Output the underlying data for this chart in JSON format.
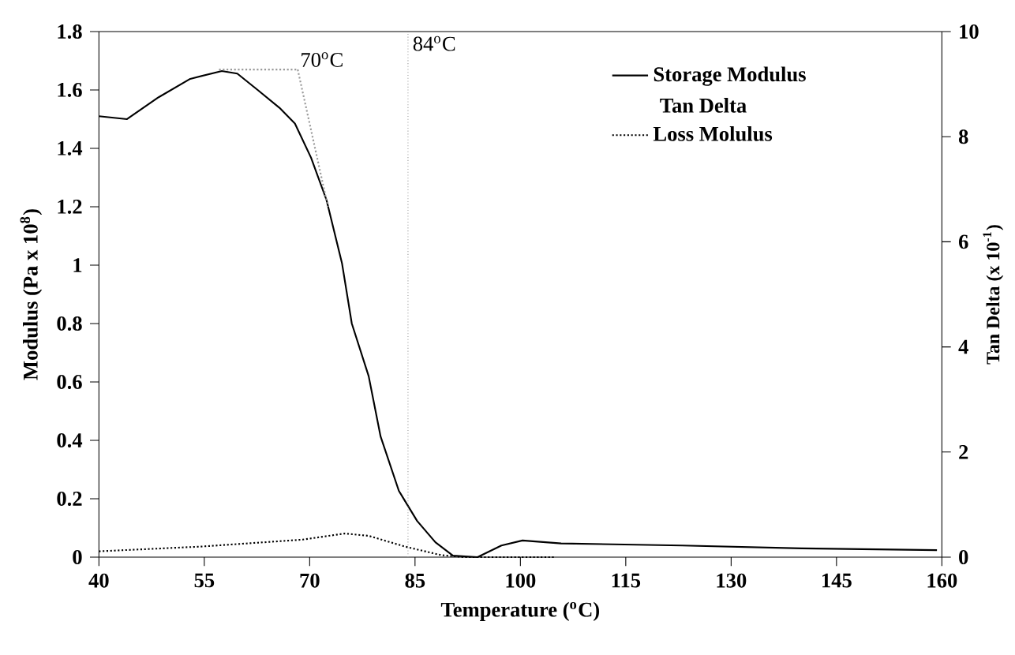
{
  "chart_data": {
    "type": "line",
    "xlabel": "Temperature ($^{o}$C)",
    "ylabel": "Modulus (Pa x 10$^{8}$)",
    "y2label": "Tan Delta (x 10$^{-1}$)",
    "xlim": [
      40,
      160
    ],
    "xticks": [
      40,
      55,
      70,
      85,
      100,
      115,
      130,
      145,
      160
    ],
    "ylim": [
      0,
      1.8
    ],
    "yticks": [
      0,
      0.2,
      0.4,
      0.6,
      0.8,
      1,
      1.2,
      1.4,
      1.6,
      1.8
    ],
    "y2lim": [
      0,
      10
    ],
    "y2ticks": [
      0,
      2,
      4,
      6,
      8,
      10
    ],
    "legend": "top right",
    "grid": false,
    "marker": "none",
    "series": [
      {
        "name": "Storage Modulus",
        "color": "#000000",
        "line_style": "solid",
        "x": [
          40,
          44,
          48.5,
          53,
          57.5,
          59.7,
          62.6,
          65.7,
          67.9,
          70.2,
          72.4,
          74.6,
          76.0,
          78.4,
          80.1,
          82.7,
          85.3,
          87.9,
          90.4,
          93.9,
          97.3,
          100.3,
          105.8,
          123,
          140,
          159.3
        ],
        "values": [
          1.51,
          1.5,
          1.575,
          1.638,
          1.665,
          1.656,
          1.6,
          1.539,
          1.485,
          1.368,
          1.223,
          1.007,
          0.8,
          0.62,
          0.413,
          0.227,
          0.124,
          0.051,
          0.005,
          0,
          0.04,
          0.057,
          0.047,
          0.04,
          0.03,
          0.024
        ]
      },
      {
        "name": "Loss Molulus",
        "color": "#000000",
        "line_style": "dotted",
        "x": [
          40,
          54.4,
          69,
          75,
          78.4,
          83.6,
          88.7,
          92,
          105
        ],
        "values": [
          0.02,
          0.036,
          0.06,
          0.081,
          0.073,
          0.036,
          0.007,
          0,
          0
        ]
      },
      {
        "color": "#999999",
        "line_style": "dotted",
        "x": [
          57.1,
          68.3
        ],
        "values": [
          1.67,
          1.67
        ]
      },
      {
        "color": "#999999",
        "line_style": "dotted",
        "x": [
          68.3,
          72.6
        ],
        "values": [
          1.67,
          1.2
        ]
      }
    ],
    "ref_lines": [
      {
        "axis": "x",
        "value": 84,
        "label": "84$^{o}$C",
        "color": "#999999",
        "line_style": "dotted"
      }
    ],
    "annotations": [
      "70$^{o}$C",
      "Tan Delta"
    ]
  }
}
